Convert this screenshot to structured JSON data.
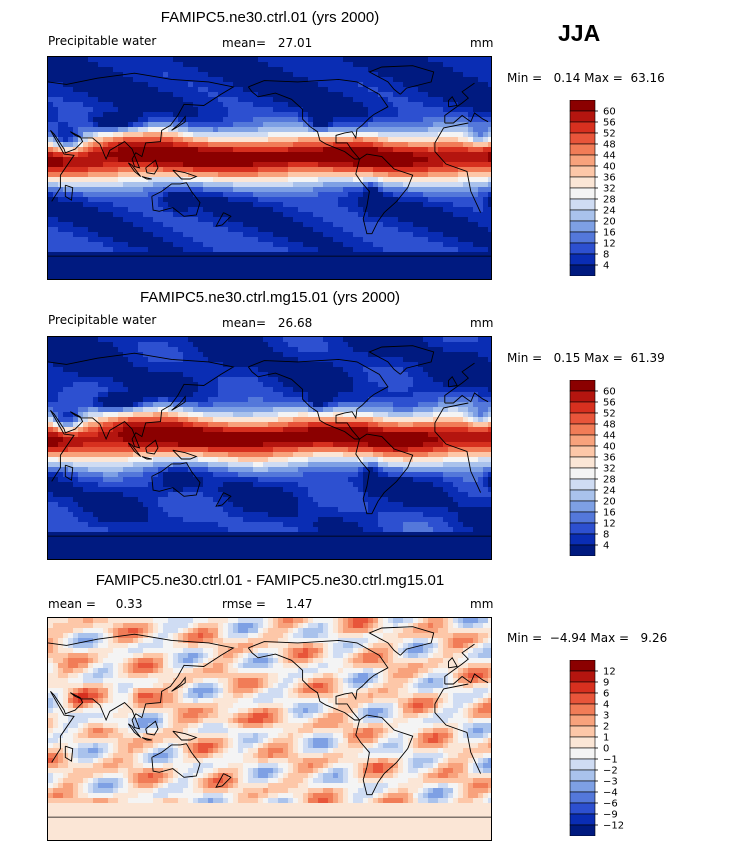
{
  "season": "JJA",
  "panels": [
    {
      "title": "FAMIPC5.ne30.ctrl.01 (yrs 2000)",
      "left_label": "Precipitable water",
      "stat1_label": "mean=",
      "stat1_value": "27.01",
      "stat2_label": "",
      "stat2_value": "",
      "units": "mm",
      "minmax": "Min =   0.14 Max =  63.16"
    },
    {
      "title": "FAMIPC5.ne30.ctrl.mg15.01 (yrs 2000)",
      "left_label": "Precipitable water",
      "stat1_label": "mean=",
      "stat1_value": "26.68",
      "stat2_label": "",
      "stat2_value": "",
      "units": "mm",
      "minmax": "Min =   0.15 Max =  61.39"
    },
    {
      "title": "FAMIPC5.ne30.ctrl.01 - FAMIPC5.ne30.ctrl.mg15.01",
      "left_label": "mean =",
      "left_value": "0.33",
      "stat1_label": "rmse =",
      "stat1_value": "1.47",
      "units": "mm",
      "minmax": "Min =  −4.94 Max =   9.26"
    }
  ],
  "chart_data": [
    {
      "type": "heatmap",
      "title": "FAMIPC5.ne30.ctrl.01 (yrs 2000)",
      "variable": "Precipitable water",
      "units": "mm",
      "mean": 27.01,
      "min": 0.14,
      "max": 63.16,
      "colorbar_levels": [
        "60",
        "56",
        "52",
        "48",
        "44",
        "40",
        "36",
        "32",
        "28",
        "24",
        "20",
        "16",
        "12",
        "8",
        "4"
      ],
      "colorbar_colors": [
        "#8b0000",
        "#b4150f",
        "#d7301f",
        "#e8553a",
        "#f17c57",
        "#f8a27c",
        "#fdc7a8",
        "#fbe6d6",
        "#f4f4f4",
        "#cfdcf3",
        "#a9c2ec",
        "#7ea0e4",
        "#5478da",
        "#2d50d0",
        "#0a2db4",
        "#001a80"
      ]
    },
    {
      "type": "heatmap",
      "title": "FAMIPC5.ne30.ctrl.mg15.01 (yrs 2000)",
      "variable": "Precipitable water",
      "units": "mm",
      "mean": 26.68,
      "min": 0.15,
      "max": 61.39,
      "colorbar_levels": [
        "60",
        "56",
        "52",
        "48",
        "44",
        "40",
        "36",
        "32",
        "28",
        "24",
        "20",
        "16",
        "12",
        "8",
        "4"
      ],
      "colorbar_colors": [
        "#8b0000",
        "#b4150f",
        "#d7301f",
        "#e8553a",
        "#f17c57",
        "#f8a27c",
        "#fdc7a8",
        "#fbe6d6",
        "#f4f4f4",
        "#cfdcf3",
        "#a9c2ec",
        "#7ea0e4",
        "#5478da",
        "#2d50d0",
        "#0a2db4",
        "#001a80"
      ]
    },
    {
      "type": "heatmap",
      "title": "FAMIPC5.ne30.ctrl.01 - FAMIPC5.ne30.ctrl.mg15.01",
      "units": "mm",
      "mean": 0.33,
      "rmse": 1.47,
      "min": -4.94,
      "max": 9.26,
      "colorbar_levels": [
        "12",
        "9",
        "6",
        "4",
        "3",
        "2",
        "1",
        "0",
        "−1",
        "−2",
        "−3",
        "−4",
        "−6",
        "−9",
        "−12"
      ],
      "colorbar_colors": [
        "#8b0000",
        "#b4150f",
        "#d7301f",
        "#e8553a",
        "#f17c57",
        "#f8a27c",
        "#fdc7a8",
        "#fbe6d6",
        "#f4f4f4",
        "#cfdcf3",
        "#a9c2ec",
        "#7ea0e4",
        "#5478da",
        "#2d50d0",
        "#0a2db4",
        "#001a80"
      ]
    }
  ]
}
